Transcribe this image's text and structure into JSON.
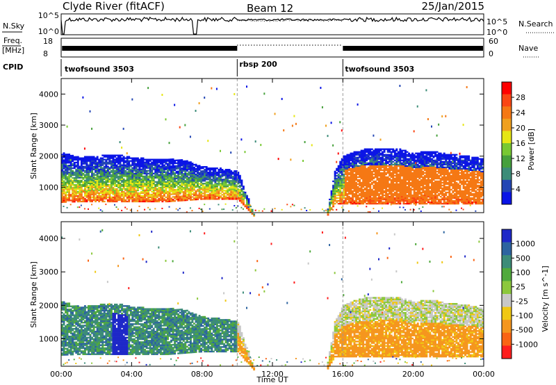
{
  "header": {
    "title": "Clyde River (fitACF)",
    "beam": "Beam 12",
    "date": "25/Jan/2015"
  },
  "params": {
    "nsky_label": "N.Sky",
    "nsky_ticks": [
      "10^5",
      "10^0"
    ],
    "nsearch_label": "N.Search",
    "nsearch_ticks": [
      "10^5",
      "10^0"
    ],
    "freq_label_1": "Freq.",
    "freq_label_2": "[MHz]",
    "freq_ticks": [
      "18",
      "8"
    ],
    "nave_label": "Nave",
    "nave_ticks": [
      "60",
      "0"
    ],
    "cpid_label": "CPID",
    "cpid_segments": [
      {
        "name": "twofsound 3503",
        "start_h": 0,
        "end_h": 10
      },
      {
        "name": "rbsp 200",
        "start_h": 10,
        "end_h": 16
      },
      {
        "name": "twofsound 3503",
        "start_h": 16,
        "end_h": 24
      }
    ]
  },
  "chart_data": [
    {
      "type": "heatmap",
      "title": "Power",
      "ylabel": "Slant Range [km]",
      "xlabel": "Time UT",
      "xlim_hours": [
        0,
        24
      ],
      "ylim": [
        180,
        4500
      ],
      "x_ticks": [
        "00:00",
        "04:00",
        "08:00",
        "12:00",
        "16:00",
        "20:00",
        "00:00"
      ],
      "y_ticks": [
        1000,
        2000,
        3000,
        4000
      ],
      "colorbar": {
        "label": "Power [dB]",
        "ticks": [
          "4",
          "8",
          "12",
          "16",
          "20",
          "24",
          "28"
        ],
        "colors": [
          "#0a14e6",
          "#2346b4",
          "#3c8c78",
          "#46a03c",
          "#78c832",
          "#e6e614",
          "#f0a01e",
          "#f57814",
          "#fa4614",
          "#ff0000"
        ]
      }
    },
    {
      "type": "heatmap",
      "title": "Velocity",
      "ylabel": "Slant Range [km]",
      "xlabel": "Time UT",
      "xlim_hours": [
        0,
        24
      ],
      "ylim": [
        180,
        4500
      ],
      "x_ticks": [
        "00:00",
        "04:00",
        "08:00",
        "12:00",
        "16:00",
        "20:00",
        "00:00"
      ],
      "y_ticks": [
        1000,
        2000,
        3000,
        4000
      ],
      "colorbar": {
        "label": "Velocity [m s^-1]",
        "ticks": [
          "1000",
          "500",
          "100",
          "25",
          "-25",
          "-100",
          "-500",
          "-1000"
        ],
        "colors": [
          "#1e28c8",
          "#2d64a0",
          "#3c8c78",
          "#50aa3c",
          "#8cc83c",
          "#c8c8c8",
          "#f0c814",
          "#f5961e",
          "#fa6414",
          "#ff1e1e"
        ]
      }
    }
  ],
  "series": {
    "ionospheric_band": [
      {
        "t": 0,
        "lo": 500,
        "hi": 2100
      },
      {
        "t": 1,
        "lo": 520,
        "hi": 1950
      },
      {
        "t": 2,
        "lo": 520,
        "hi": 2000
      },
      {
        "t": 3,
        "lo": 520,
        "hi": 2050
      },
      {
        "t": 4,
        "lo": 520,
        "hi": 1950
      },
      {
        "t": 5,
        "lo": 520,
        "hi": 1900
      },
      {
        "t": 6,
        "lo": 520,
        "hi": 1900
      },
      {
        "t": 7,
        "lo": 560,
        "hi": 1850
      },
      {
        "t": 8,
        "lo": 600,
        "hi": 1650
      },
      {
        "t": 9,
        "lo": 600,
        "hi": 1600
      },
      {
        "t": 10,
        "lo": 600,
        "hi": 1500
      },
      {
        "t": 11,
        "lo": 0,
        "hi": 0
      },
      {
        "t": 15,
        "lo": 0,
        "hi": 0
      },
      {
        "t": 15.5,
        "lo": 450,
        "hi": 1500
      },
      {
        "t": 16,
        "lo": 450,
        "hi": 2000
      },
      {
        "t": 17,
        "lo": 450,
        "hi": 2200
      },
      {
        "t": 18,
        "lo": 450,
        "hi": 2250
      },
      {
        "t": 19,
        "lo": 450,
        "hi": 2250
      },
      {
        "t": 20,
        "lo": 450,
        "hi": 2100
      },
      {
        "t": 21,
        "lo": 450,
        "hi": 2150
      },
      {
        "t": 22,
        "lo": 450,
        "hi": 2050
      },
      {
        "t": 23,
        "lo": 450,
        "hi": 2000
      },
      {
        "t": 24,
        "lo": 450,
        "hi": 1900
      }
    ],
    "mode_change_hours": [
      10,
      16
    ]
  }
}
